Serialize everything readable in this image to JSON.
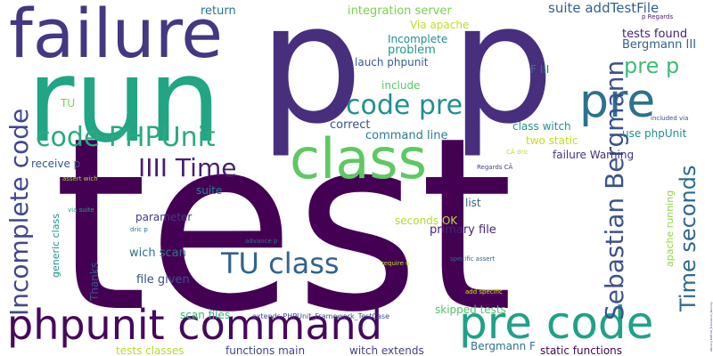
{
  "words": [
    {
      "text": "test",
      "color": "#440154"
    },
    {
      "text": "run",
      "color": "#21a585"
    },
    {
      "text": "p",
      "color": "#472f7d"
    },
    {
      "text": "p",
      "color": "#472f7d"
    },
    {
      "text": "failure",
      "color": "#453781"
    },
    {
      "text": "class",
      "color": "#5ec962"
    },
    {
      "text": "pre",
      "color": "#2c728e"
    },
    {
      "text": "pre code",
      "color": "#1fa187"
    },
    {
      "text": "phpunit command",
      "color": "#46085c"
    },
    {
      "text": "Incomplete code",
      "color": "#3e4989"
    },
    {
      "text": "code pre",
      "color": "#218f8d"
    },
    {
      "text": "code PHPUnit",
      "color": "#2aaa7e"
    },
    {
      "text": "TU class",
      "color": "#33638d"
    },
    {
      "text": "IIII Time",
      "color": "#481f70"
    },
    {
      "text": "Sebastian Bergmann",
      "color": "#3b528b"
    },
    {
      "text": "Time seconds",
      "color": "#31688e"
    },
    {
      "text": "pre p",
      "color": "#3fbc73"
    },
    {
      "text": "suite addTestFile",
      "color": "#355f8d"
    },
    {
      "text": "tests found",
      "color": "#482173"
    },
    {
      "text": "Bergmann III",
      "color": "#34618d"
    },
    {
      "text": "integration server",
      "color": "#7ad151"
    },
    {
      "text": "Via apache",
      "color": "#c0df25"
    },
    {
      "text": "return",
      "color": "#2c738e"
    },
    {
      "text": "Incomplete",
      "color": "#218e8d"
    },
    {
      "text": "problem",
      "color": "#1e9b8a"
    },
    {
      "text": "lauch phpunit",
      "color": "#355e8d"
    },
    {
      "text": "F III",
      "color": "#2a788e"
    },
    {
      "text": "include",
      "color": "#5cc863"
    },
    {
      "text": "TU",
      "color": "#7ad151"
    },
    {
      "text": "correct",
      "color": "#3b528b"
    },
    {
      "text": "command line",
      "color": "#287c8e"
    },
    {
      "text": "class witch",
      "color": "#20928c"
    },
    {
      "text": "two static",
      "color": "#c2df23"
    },
    {
      "text": "use phpUnit",
      "color": "#218e8d"
    },
    {
      "text": "failure Warning",
      "color": "#46337f"
    },
    {
      "text": "receive p",
      "color": "#3a548c"
    },
    {
      "text": "suite",
      "color": "#27808e"
    },
    {
      "text": "list",
      "color": "#31688e"
    },
    {
      "text": "seconds OK",
      "color": "#b2dd2d"
    },
    {
      "text": "primary file",
      "color": "#482475"
    },
    {
      "text": "parameter",
      "color": "#453882"
    },
    {
      "text": "wich scan",
      "color": "#2c738e"
    },
    {
      "text": "file given",
      "color": "#3c4f8a"
    },
    {
      "text": "generic class",
      "color": "#20938c"
    },
    {
      "text": "Thanks",
      "color": "#3b528b"
    },
    {
      "text": "scan files",
      "color": "#35b779"
    },
    {
      "text": "skipped tests",
      "color": "#52c569"
    },
    {
      "text": "tests classes",
      "color": "#b5de2b"
    },
    {
      "text": "functions main",
      "color": "#404588"
    },
    {
      "text": "witch extends",
      "color": "#424086"
    },
    {
      "text": "Bergmann F",
      "color": "#2c728e"
    },
    {
      "text": "static functions",
      "color": "#450457"
    },
    {
      "text": "apache running",
      "color": "#8ed645"
    },
    {
      "text": "Warning PHPUnit_Framework_Warning",
      "color": "#482878"
    },
    {
      "text": "extends PHPUnit_Framework_TestCase",
      "color": "#3e4989"
    },
    {
      "text": "Regards CÃ",
      "color": "#414487"
    },
    {
      "text": "CÃ dric",
      "color": "#b8de29"
    },
    {
      "text": "p Regards",
      "color": "#48186a"
    },
    {
      "text": "included via",
      "color": "#3b528b"
    },
    {
      "text": "assert wich",
      "color": "#a8db34"
    },
    {
      "text": "via suite",
      "color": "#20a386"
    },
    {
      "text": "dric p",
      "color": "#2d708e"
    },
    {
      "text": "advance p",
      "color": "#2c728e"
    },
    {
      "text": "require o",
      "color": "#bddf26"
    },
    {
      "text": "specific assert",
      "color": "#32648e"
    },
    {
      "text": "add specific",
      "color": "#d8e219"
    }
  ]
}
